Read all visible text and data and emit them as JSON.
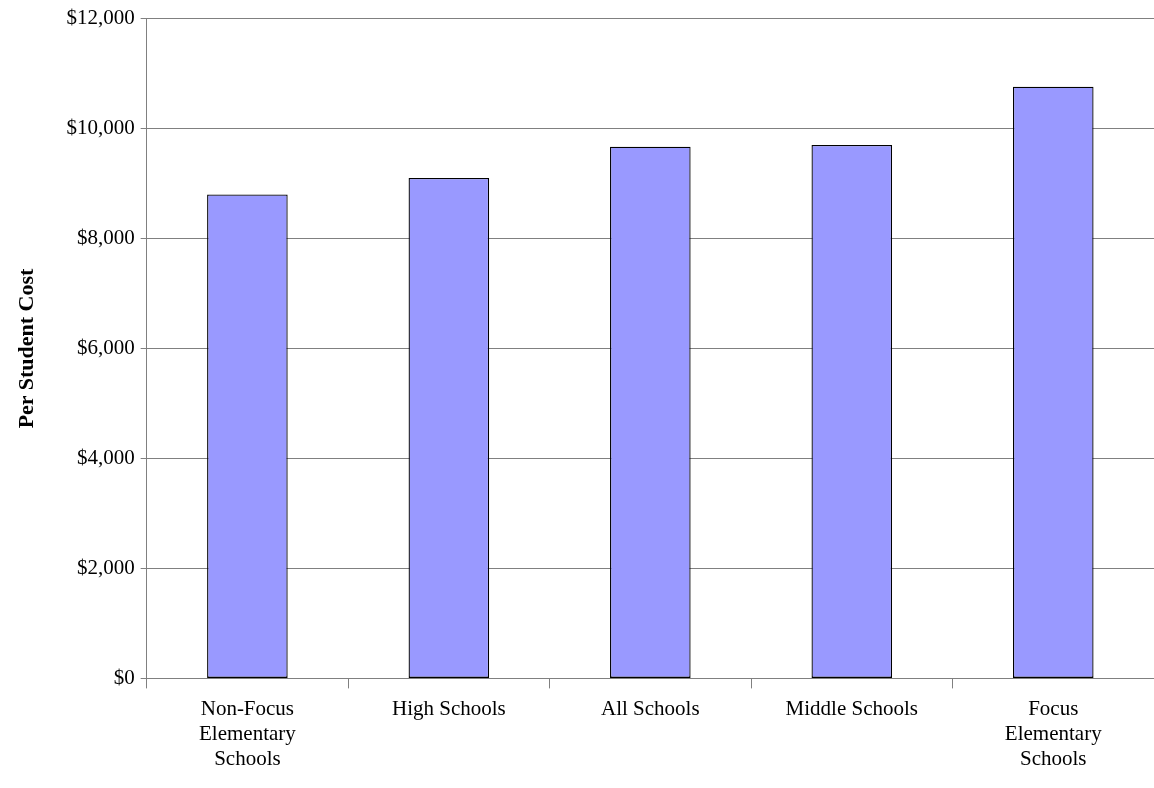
{
  "chart_data": {
    "type": "bar",
    "ylabel": "Per Student Cost",
    "categories": [
      "Non-Focus Elementary Schools",
      "High Schools",
      "All Schools",
      "Middle Schools",
      "Focus Elementary Schools"
    ],
    "values": [
      8800,
      9100,
      9670,
      9700,
      10760
    ],
    "color": "#9999ff",
    "ylim": [
      0,
      12000
    ],
    "yticks": [
      {
        "value": 0,
        "label": "$0"
      },
      {
        "value": 2000,
        "label": "$2,000"
      },
      {
        "value": 4000,
        "label": "$4,000"
      },
      {
        "value": 6000,
        "label": "$6,000"
      },
      {
        "value": 8000,
        "label": "$8,000"
      },
      {
        "value": 10000,
        "label": "$10,000"
      },
      {
        "value": 12000,
        "label": "$12,000"
      }
    ],
    "grid": "y",
    "legend": false
  }
}
